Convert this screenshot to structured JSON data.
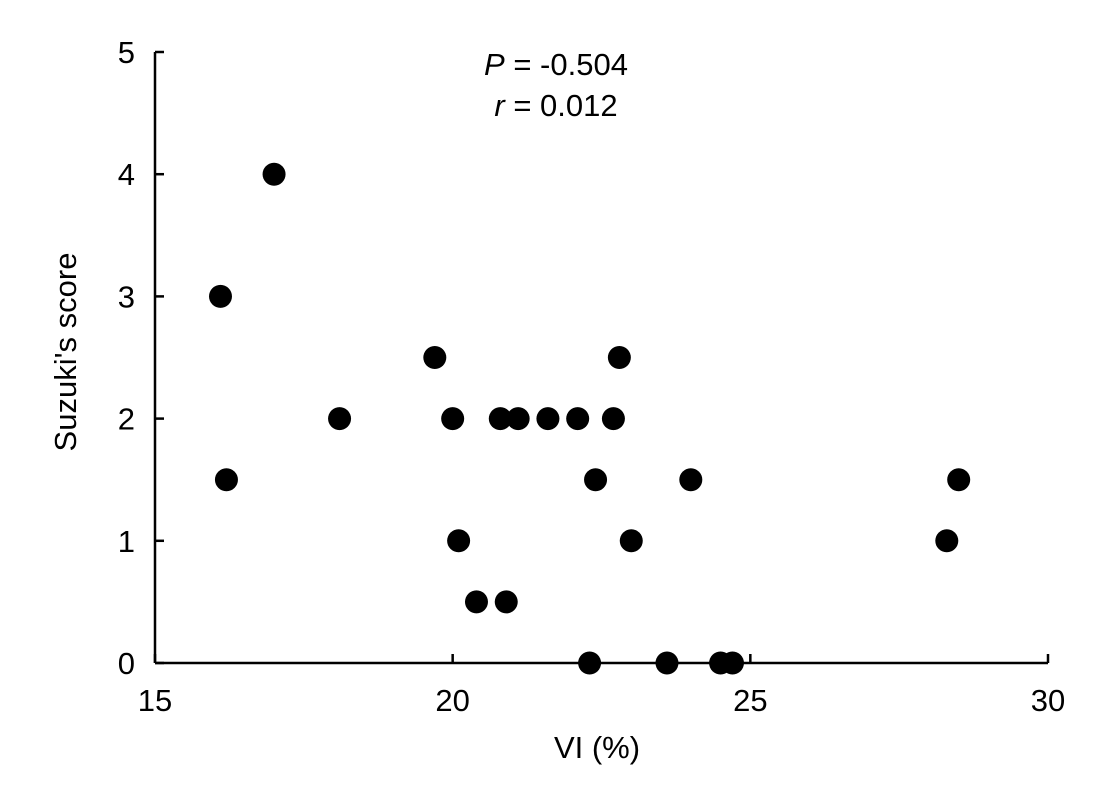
{
  "chart_data": {
    "type": "scatter",
    "title": "",
    "xlabel": "VI (%)",
    "ylabel": "Suzuki's score",
    "xlim": [
      15,
      30
    ],
    "ylim": [
      0,
      5
    ],
    "xticks": [
      15,
      20,
      25,
      30
    ],
    "yticks": [
      0,
      1,
      2,
      3,
      4,
      5
    ],
    "grid": false,
    "marker_color": "#000000",
    "annotations": [
      {
        "var": "P",
        "rest": " = -0.504"
      },
      {
        "var": "r",
        "rest": " = 0.012"
      }
    ],
    "series": [
      {
        "points": [
          {
            "x": 17.0,
            "y": 4.0
          },
          {
            "x": 16.1,
            "y": 3.0
          },
          {
            "x": 16.2,
            "y": 1.5
          },
          {
            "x": 18.1,
            "y": 2.0
          },
          {
            "x": 19.7,
            "y": 2.5
          },
          {
            "x": 20.0,
            "y": 2.0
          },
          {
            "x": 20.1,
            "y": 1.0
          },
          {
            "x": 20.4,
            "y": 0.5
          },
          {
            "x": 20.8,
            "y": 2.0
          },
          {
            "x": 20.9,
            "y": 0.5
          },
          {
            "x": 21.1,
            "y": 2.0
          },
          {
            "x": 21.6,
            "y": 2.0
          },
          {
            "x": 22.1,
            "y": 2.0
          },
          {
            "x": 22.4,
            "y": 1.5
          },
          {
            "x": 22.3,
            "y": 0.0
          },
          {
            "x": 22.7,
            "y": 2.0
          },
          {
            "x": 22.8,
            "y": 2.5
          },
          {
            "x": 23.0,
            "y": 1.0
          },
          {
            "x": 23.6,
            "y": 0.0
          },
          {
            "x": 24.0,
            "y": 1.5
          },
          {
            "x": 24.5,
            "y": 0.0
          },
          {
            "x": 24.7,
            "y": 0.0
          },
          {
            "x": 28.3,
            "y": 1.0
          },
          {
            "x": 28.5,
            "y": 1.5
          }
        ]
      }
    ]
  }
}
